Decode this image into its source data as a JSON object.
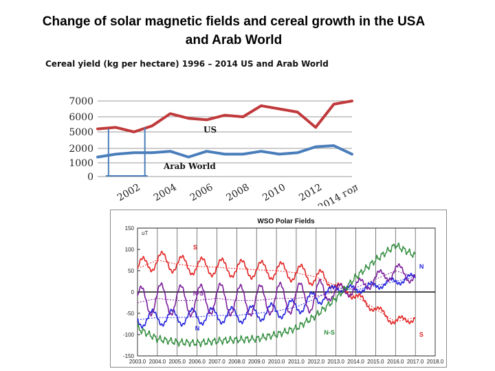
{
  "slide": {
    "title_line1": "Change of solar magnetic fields and cereal growth in the USA",
    "title_line2": "and Arab World"
  },
  "chart_data": [
    {
      "type": "line",
      "title": "Cereal yield (kg per hectare)  1996 – 2014 US and Arab World",
      "x": [
        2000,
        2001,
        2002,
        2003,
        2004,
        2005,
        2006,
        2007,
        2008,
        2009,
        2010,
        2011,
        2012,
        2013,
        2014
      ],
      "x_tick_labels": [
        "2002",
        "2004",
        "2006",
        "2008",
        "2010",
        "2012",
        "2014 год"
      ],
      "x_tick_values": [
        2002,
        2004,
        2006,
        2008,
        2010,
        2012,
        2014
      ],
      "y_tick_labels": [
        "0",
        "1000",
        "2000",
        "5000",
        "6000",
        "7000"
      ],
      "y_tick_values": [
        0,
        1000,
        2000,
        5000,
        6000,
        7000
      ],
      "series": [
        {
          "name": "US",
          "color": "#c0393b",
          "values": [
            5200,
            5300,
            5000,
            5400,
            6200,
            5900,
            5800,
            6100,
            6000,
            6700,
            6500,
            6300,
            5300,
            6800,
            7100
          ]
        },
        {
          "name": "Arab World",
          "color": "#4a7ebb",
          "values": [
            1400,
            1600,
            1700,
            1700,
            1800,
            1400,
            1800,
            1600,
            1600,
            1800,
            1600,
            1700,
            2300,
            2500,
            1600
          ]
        }
      ],
      "ylim": [
        0,
        7000
      ]
    },
    {
      "type": "line",
      "title": "WSO Polar Fields",
      "ylabel": "uT",
      "y_ticks": [
        150,
        100,
        50,
        0,
        -50,
        -100,
        -150
      ],
      "x_ticks": [
        "2003.0",
        "2004.0",
        "2005.0",
        "2006.0",
        "2007.0",
        "2008.0",
        "2009.0",
        "2010.0",
        "2011.0",
        "2012.0",
        "2013.0",
        "2014.0",
        "2015.0",
        "2016.0",
        "2017.0",
        "2018.0"
      ],
      "xlim": [
        2003.0,
        2018.0
      ],
      "ylim": [
        -150,
        150
      ],
      "annotations": [
        "S",
        "N-S",
        "N",
        "N-S",
        "N",
        "S"
      ],
      "series": [
        {
          "name": "S",
          "color": "#e32222",
          "x": [
            2003.0,
            2004.0,
            2005.0,
            2006.0,
            2007.0,
            2008.0,
            2009.0,
            2010.0,
            2011.0,
            2012.0,
            2013.0,
            2014.0,
            2015.0,
            2016.0,
            2017.0
          ],
          "mean": [
            55,
            75,
            65,
            60,
            58,
            55,
            52,
            50,
            45,
            35,
            15,
            -10,
            -40,
            -70,
            -60
          ],
          "amplitude": 20
        },
        {
          "name": "N",
          "color": "#2020dd",
          "x": [
            2003.0,
            2004.0,
            2005.0,
            2006.0,
            2007.0,
            2008.0,
            2009.0,
            2010.0,
            2011.0,
            2012.0,
            2013.0,
            2014.0,
            2015.0,
            2016.0,
            2017.0
          ],
          "mean": [
            -65,
            -60,
            -60,
            -58,
            -55,
            -55,
            -50,
            -45,
            -35,
            -15,
            10,
            5,
            15,
            25,
            35
          ],
          "amplitude": 18
        },
        {
          "name": "N-S",
          "color": "#7a1c9a",
          "x": [
            2003.0,
            2004.0,
            2005.0,
            2006.0,
            2007.0,
            2008.0,
            2009.0,
            2010.0,
            2011.0,
            2012.0,
            2013.0,
            2014.0,
            2015.0,
            2016.0,
            2017.0
          ],
          "mean": [
            -25,
            -15,
            -20,
            -20,
            -15,
            -20,
            -20,
            -15,
            -15,
            -10,
            0,
            10,
            30,
            50,
            35
          ],
          "amplitude": 35
        },
        {
          "name": "N-S (smoothed)",
          "color": "#2e8b3a",
          "x": [
            2003.0,
            2004.0,
            2005.0,
            2006.0,
            2007.0,
            2008.0,
            2009.0,
            2010.0,
            2011.0,
            2012.0,
            2013.0,
            2014.0,
            2015.0,
            2016.0,
            2017.0
          ],
          "values": [
            -85,
            -110,
            -118,
            -120,
            -115,
            -112,
            -110,
            -100,
            -85,
            -55,
            -15,
            35,
            75,
            110,
            85
          ]
        }
      ]
    }
  ]
}
